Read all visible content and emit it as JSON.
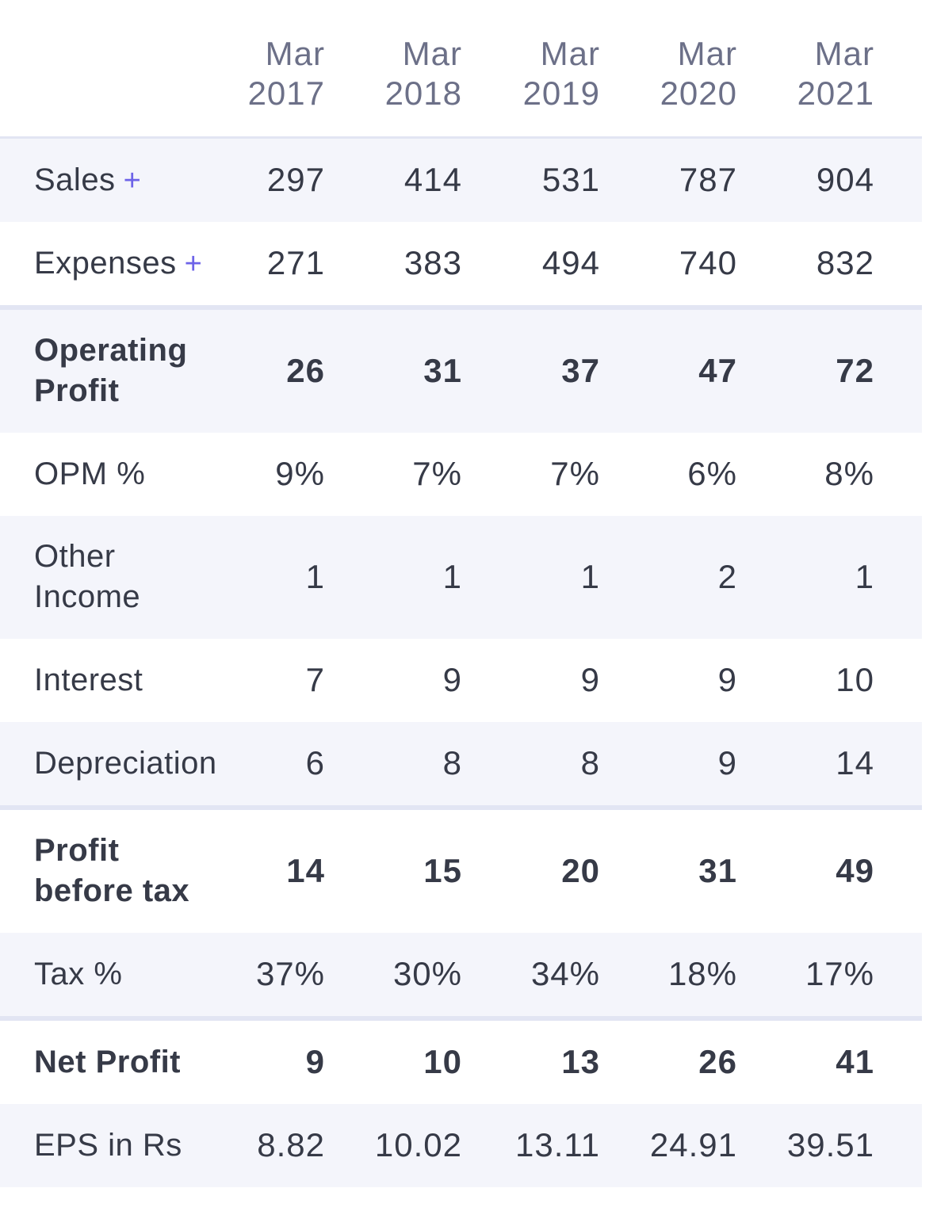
{
  "columns": [
    "Mar 2017",
    "Mar 2018",
    "Mar 2019",
    "Mar 2020",
    "Mar 2021"
  ],
  "column_parts": [
    {
      "month": "Mar",
      "year": "2017"
    },
    {
      "month": "Mar",
      "year": "2018"
    },
    {
      "month": "Mar",
      "year": "2019"
    },
    {
      "month": "Mar",
      "year": "2020"
    },
    {
      "month": "Mar",
      "year": "2021"
    }
  ],
  "rows": [
    {
      "label": "Sales",
      "expand": "+",
      "values": [
        "297",
        "414",
        "531",
        "787",
        "904"
      ]
    },
    {
      "label": "Expenses",
      "expand": "+",
      "values": [
        "271",
        "383",
        "494",
        "740",
        "832"
      ]
    },
    {
      "label": "Operating Profit",
      "values": [
        "26",
        "31",
        "37",
        "47",
        "72"
      ]
    },
    {
      "label": "OPM %",
      "values": [
        "9%",
        "7%",
        "7%",
        "6%",
        "8%"
      ]
    },
    {
      "label": "Other Income",
      "values": [
        "1",
        "1",
        "1",
        "2",
        "1"
      ]
    },
    {
      "label": "Interest",
      "values": [
        "7",
        "9",
        "9",
        "9",
        "10"
      ]
    },
    {
      "label": "Depreciation",
      "values": [
        "6",
        "8",
        "8",
        "9",
        "14"
      ]
    },
    {
      "label": "Profit before tax",
      "values": [
        "14",
        "15",
        "20",
        "31",
        "49"
      ]
    },
    {
      "label": "Tax %",
      "values": [
        "37%",
        "30%",
        "34%",
        "18%",
        "17%"
      ]
    },
    {
      "label": "Net Profit",
      "values": [
        "9",
        "10",
        "13",
        "26",
        "41"
      ]
    },
    {
      "label": "EPS in Rs",
      "values": [
        "8.82",
        "10.02",
        "13.11",
        "24.91",
        "39.51"
      ]
    }
  ],
  "colors": {
    "accent": "#6d63e8",
    "row_shade": "#f4f5fb",
    "separator": "#e2e5f3",
    "header_text": "#6c7088",
    "body_text": "#363a47"
  }
}
